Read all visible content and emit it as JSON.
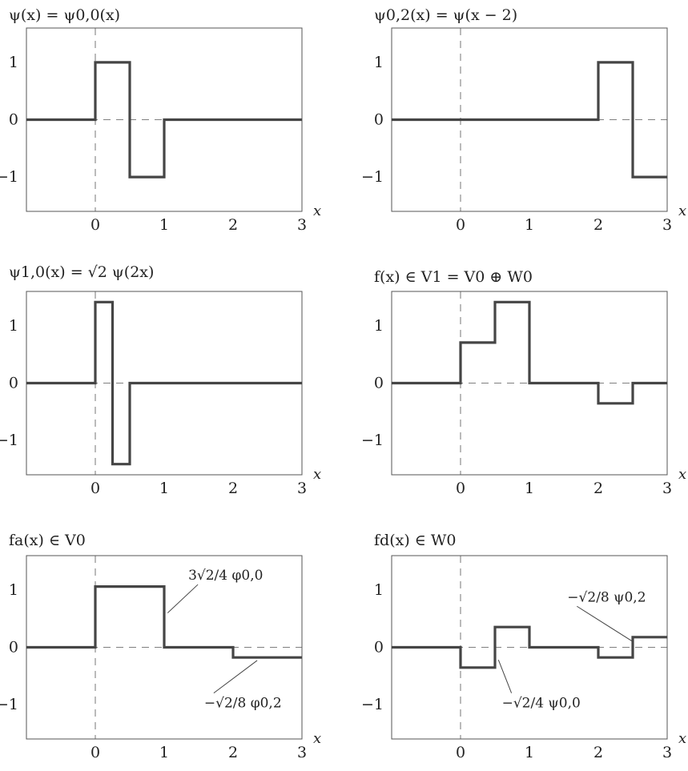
{
  "chart_data": [
    {
      "type": "line",
      "title": "ψ(x) = ψ0,0(x)",
      "xlabel": "x",
      "xlim": [
        -1,
        3
      ],
      "ylim": [
        -1.6,
        1.6
      ],
      "xticks": [
        0,
        1,
        2,
        3
      ],
      "yticks": [
        -1,
        0,
        1
      ],
      "xtick_labels": [
        "0",
        "1",
        "2",
        "3"
      ],
      "ytick_labels": [
        "−1",
        "0",
        "1"
      ],
      "step_x": [
        -1,
        0,
        0.5,
        1,
        3
      ],
      "step_y": [
        0,
        1,
        -1,
        0
      ],
      "annotations": []
    },
    {
      "type": "line",
      "title": "ψ0,2(x) = ψ(x − 2)",
      "xlabel": "x",
      "xlim": [
        -1,
        3
      ],
      "ylim": [
        -1.6,
        1.6
      ],
      "xticks": [
        0,
        1,
        2,
        3
      ],
      "yticks": [
        -1,
        0,
        1
      ],
      "xtick_labels": [
        "0",
        "1",
        "2",
        "3"
      ],
      "ytick_labels": [
        "−1",
        "0",
        "1"
      ],
      "step_x": [
        -1,
        2,
        2.5,
        3
      ],
      "step_y": [
        0,
        1,
        -1
      ],
      "annotations": []
    },
    {
      "type": "line",
      "title": "ψ1,0(x) = √2 ψ(2x)",
      "xlabel": "x",
      "xlim": [
        -1,
        3
      ],
      "ylim": [
        -1.6,
        1.6
      ],
      "xticks": [
        0,
        1,
        2,
        3
      ],
      "yticks": [
        -1,
        0,
        1
      ],
      "xtick_labels": [
        "0",
        "1",
        "2",
        "3"
      ],
      "ytick_labels": [
        "−1",
        "0",
        "1"
      ],
      "step_x": [
        -1,
        0,
        0.25,
        0.5,
        3
      ],
      "step_y": [
        0,
        1.414,
        -1.414,
        0
      ],
      "annotations": []
    },
    {
      "type": "line",
      "title": "f(x) ∈ V1 = V0 ⊕ W0",
      "xlabel": "x",
      "xlim": [
        -1,
        3
      ],
      "ylim": [
        -1.6,
        1.6
      ],
      "xticks": [
        0,
        1,
        2,
        3
      ],
      "yticks": [
        -1,
        0,
        1
      ],
      "xtick_labels": [
        "0",
        "1",
        "2",
        "3"
      ],
      "ytick_labels": [
        "−1",
        "0",
        "1"
      ],
      "step_x": [
        -1,
        0,
        0.5,
        1,
        2,
        2.5,
        3
      ],
      "step_y": [
        0,
        0.707,
        1.414,
        0,
        -0.354,
        0
      ],
      "annotations": []
    },
    {
      "type": "line",
      "title": "fa(x) ∈ V0",
      "xlabel": "x",
      "xlim": [
        -1,
        3
      ],
      "ylim": [
        -1.6,
        1.6
      ],
      "xticks": [
        0,
        1,
        2,
        3
      ],
      "yticks": [
        -1,
        0,
        1
      ],
      "xtick_labels": [
        "0",
        "1",
        "2",
        "3"
      ],
      "ytick_labels": [
        "−1",
        "0",
        "1"
      ],
      "step_x": [
        -1,
        0,
        1,
        2,
        3
      ],
      "step_y": [
        0,
        1.061,
        0,
        -0.177
      ],
      "annotations": [
        {
          "text": "3√2/4 φ0,0",
          "point": [
            1.05,
            0.6
          ],
          "text_pos": [
            1.35,
            1.18
          ],
          "anchor": "start"
        },
        {
          "text": "−√2/8 φ0,2",
          "point": [
            2.35,
            -0.23
          ],
          "text_pos": [
            1.58,
            -1.05
          ],
          "anchor": "start"
        }
      ]
    },
    {
      "type": "line",
      "title": "fd(x) ∈ W0",
      "xlabel": "x",
      "xlim": [
        -1,
        3
      ],
      "ylim": [
        -1.6,
        1.6
      ],
      "xticks": [
        0,
        1,
        2,
        3
      ],
      "yticks": [
        -1,
        0,
        1
      ],
      "xtick_labels": [
        "0",
        "1",
        "2",
        "3"
      ],
      "ytick_labels": [
        "−1",
        "0",
        "1"
      ],
      "step_x": [
        -1,
        0,
        0.5,
        1,
        2,
        2.5,
        3
      ],
      "step_y": [
        0,
        -0.354,
        0.354,
        0,
        -0.177,
        0.177
      ],
      "annotations": [
        {
          "text": "−√2/4 ψ0,0",
          "point": [
            0.55,
            -0.22
          ],
          "text_pos": [
            0.6,
            -1.05
          ],
          "anchor": "start"
        },
        {
          "text": "−√2/8 ψ0,2",
          "point": [
            2.5,
            0.1
          ],
          "text_pos": [
            1.55,
            0.8
          ],
          "anchor": "start"
        }
      ]
    }
  ]
}
